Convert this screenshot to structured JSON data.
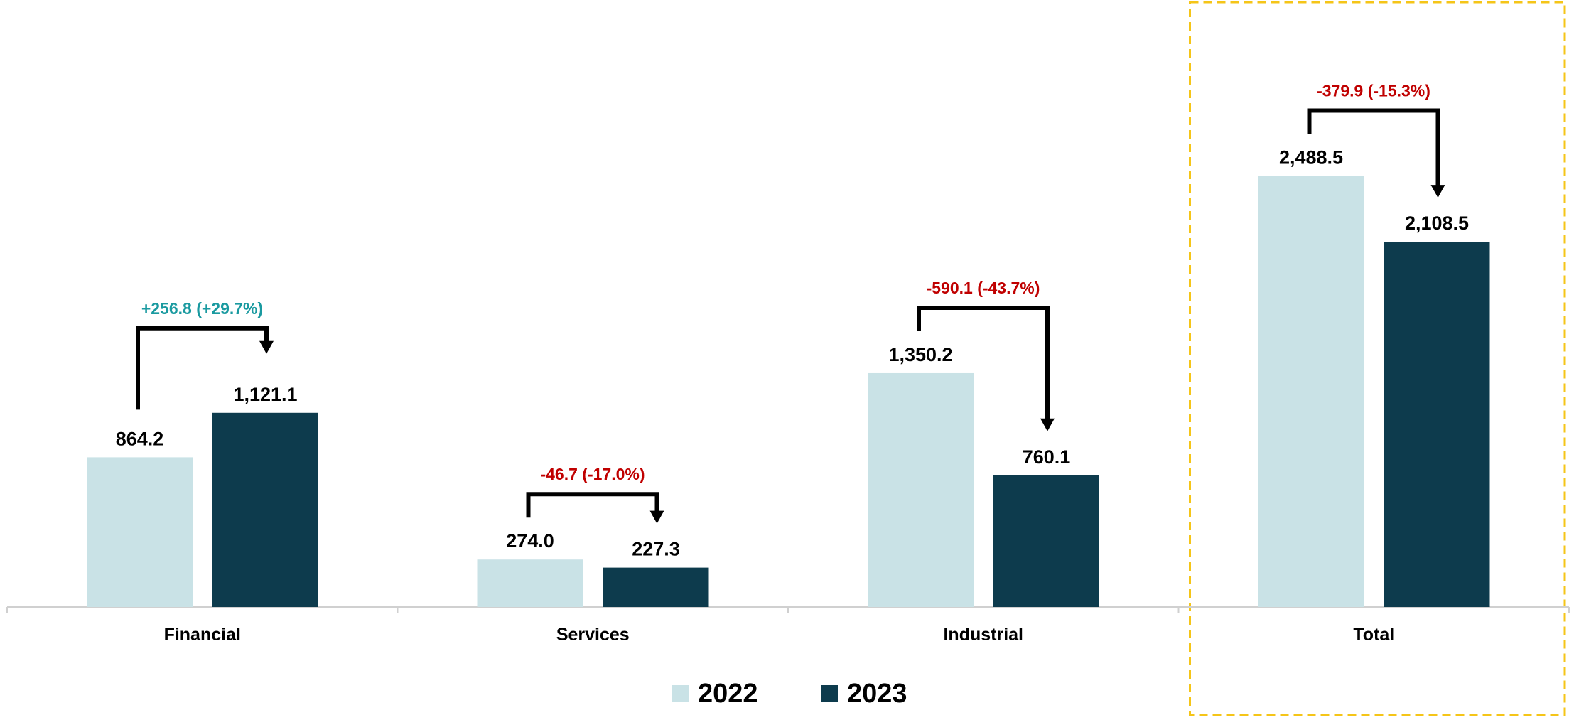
{
  "chart_data": {
    "type": "bar",
    "title": "",
    "xlabel": "",
    "ylabel": "",
    "categories": [
      "Financial",
      "Services",
      "Industrial",
      "Total"
    ],
    "series": [
      {
        "name": "2022",
        "values": [
          864.2,
          274.0,
          1350.2,
          2488.5
        ],
        "color": "#c9e2e6"
      },
      {
        "name": "2023",
        "values": [
          1121.1,
          227.3,
          760.1,
          2108.5
        ],
        "color": "#0d3b4d"
      }
    ],
    "data_labels": [
      [
        "864.2",
        "274.0",
        "1,350.2",
        "2,488.5"
      ],
      [
        "1,121.1",
        "227.3",
        "760.1",
        "2,108.5"
      ]
    ],
    "changes": [
      {
        "text": "+256.8  (+29.7%)",
        "direction": "up",
        "color": "#1a9aa0"
      },
      {
        "text": "-46.7  (-17.0%)",
        "direction": "down",
        "color": "#c00000"
      },
      {
        "text": "-590.1  (-43.7%)",
        "direction": "down",
        "color": "#c00000"
      },
      {
        "text": "-379.9  (-15.3%)",
        "direction": "down",
        "color": "#c00000"
      }
    ],
    "ylim": [
      0,
      3500
    ],
    "grid": false,
    "legend": "bottom-center",
    "highlight": {
      "category": "Total",
      "color": "#f5c518"
    }
  }
}
